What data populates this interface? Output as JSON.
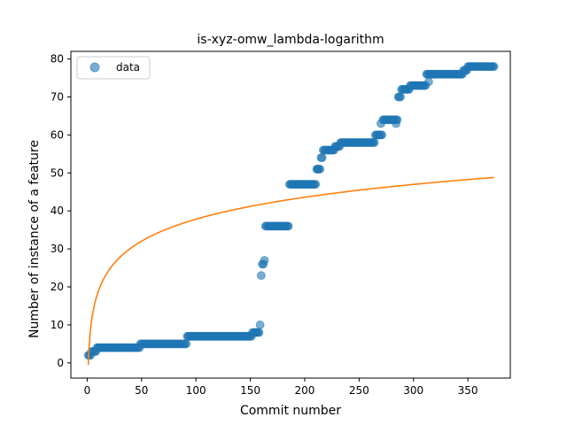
{
  "chart_data": {
    "type": "scatter",
    "title": "is-xyz-omw_lambda-logarithm",
    "xlabel": "Commit number",
    "ylabel": "Number of instance of a feature",
    "xlim": [
      -15,
      389
    ],
    "ylim": [
      -4,
      82
    ],
    "xticks": [
      0,
      50,
      100,
      150,
      200,
      250,
      300,
      350
    ],
    "yticks": [
      0,
      10,
      20,
      30,
      40,
      50,
      60,
      70,
      80
    ],
    "legend_position": "upper-left",
    "grid": false,
    "series": [
      {
        "name": "data",
        "kind": "scatter",
        "color": "#1f77b4",
        "alpha": 0.6,
        "step_runs": [
          [
            1,
            3,
            2
          ],
          [
            4,
            8,
            3
          ],
          [
            9,
            48,
            4
          ],
          [
            49,
            91,
            5
          ],
          [
            92,
            151,
            7
          ],
          [
            152,
            158,
            8
          ],
          [
            164,
            185,
            36
          ],
          [
            186,
            210,
            47
          ],
          [
            211,
            214,
            51
          ],
          [
            215,
            216,
            54
          ],
          [
            217,
            227,
            56
          ],
          [
            228,
            232,
            57
          ],
          [
            233,
            264,
            58
          ],
          [
            265,
            271,
            60
          ],
          [
            272,
            285,
            64
          ],
          [
            286,
            288,
            70
          ],
          [
            289,
            296,
            72
          ],
          [
            297,
            311,
            73
          ],
          [
            312,
            345,
            76
          ],
          [
            346,
            349,
            77
          ],
          [
            350,
            374,
            78
          ]
        ],
        "extra_points": [
          [
            159,
            10
          ],
          [
            160,
            23
          ],
          [
            161,
            26
          ],
          [
            162,
            26
          ],
          [
            163,
            27
          ],
          [
            212,
            51
          ],
          [
            270,
            63
          ],
          [
            284,
            63
          ],
          [
            314,
            74
          ],
          [
            320,
            76
          ]
        ]
      },
      {
        "name": "",
        "kind": "line",
        "color": "#ff7f0e",
        "model": "a + b*ln(x)",
        "a": -0.54,
        "b": 8.33,
        "x_range": [
          1,
          374
        ]
      }
    ]
  },
  "legend": {
    "entries": [
      {
        "label": "data",
        "marker": "circle",
        "color": "#1f77b4"
      }
    ]
  }
}
